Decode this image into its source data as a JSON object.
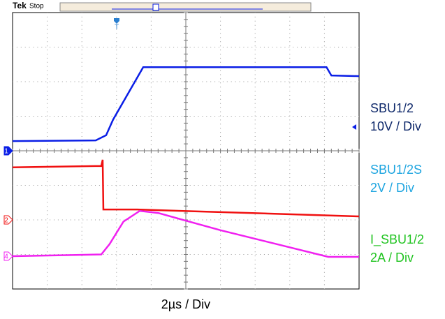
{
  "chart_data": {
    "type": "line",
    "brand": "Tek",
    "status": "Stop",
    "trigger_marker": "T",
    "x_label": "2µs / Div",
    "xlim": [
      0,
      10
    ],
    "ylim": [
      -4,
      4
    ],
    "grid": true,
    "series": [
      {
        "name": "SBU1/2",
        "scale": "10V / Div",
        "marker": "1",
        "offset": 0,
        "color": "#0a1ee6",
        "label_color": "#102a6b",
        "x": [
          0,
          2.4,
          2.7,
          2.9,
          3.77,
          9.06,
          9.2,
          10
        ],
        "values": [
          0.28,
          0.3,
          0.45,
          0.9,
          2.42,
          2.42,
          2.18,
          2.16
        ]
      },
      {
        "name": "SBU1/2S",
        "scale": "2V / Div",
        "marker": "2",
        "offset": -2,
        "color": "#f01010",
        "label_color": "#1ea5e0",
        "x": [
          0,
          2.56,
          2.6,
          2.62,
          3.6,
          10
        ],
        "values": [
          -0.48,
          -0.44,
          -0.26,
          -1.7,
          -1.7,
          -1.9
        ]
      },
      {
        "name": "I_SBU1/2",
        "scale": "2A / Div",
        "marker": "4",
        "offset": -3.05,
        "color": "#f020f0",
        "label_color": "#22c422",
        "x": [
          0,
          2.56,
          2.8,
          3.2,
          3.67,
          4.2,
          6,
          9.11,
          10
        ],
        "values": [
          -3.05,
          -3.0,
          -2.7,
          -2.05,
          -1.74,
          -1.8,
          -2.3,
          -3.07,
          -3.07
        ]
      }
    ]
  }
}
